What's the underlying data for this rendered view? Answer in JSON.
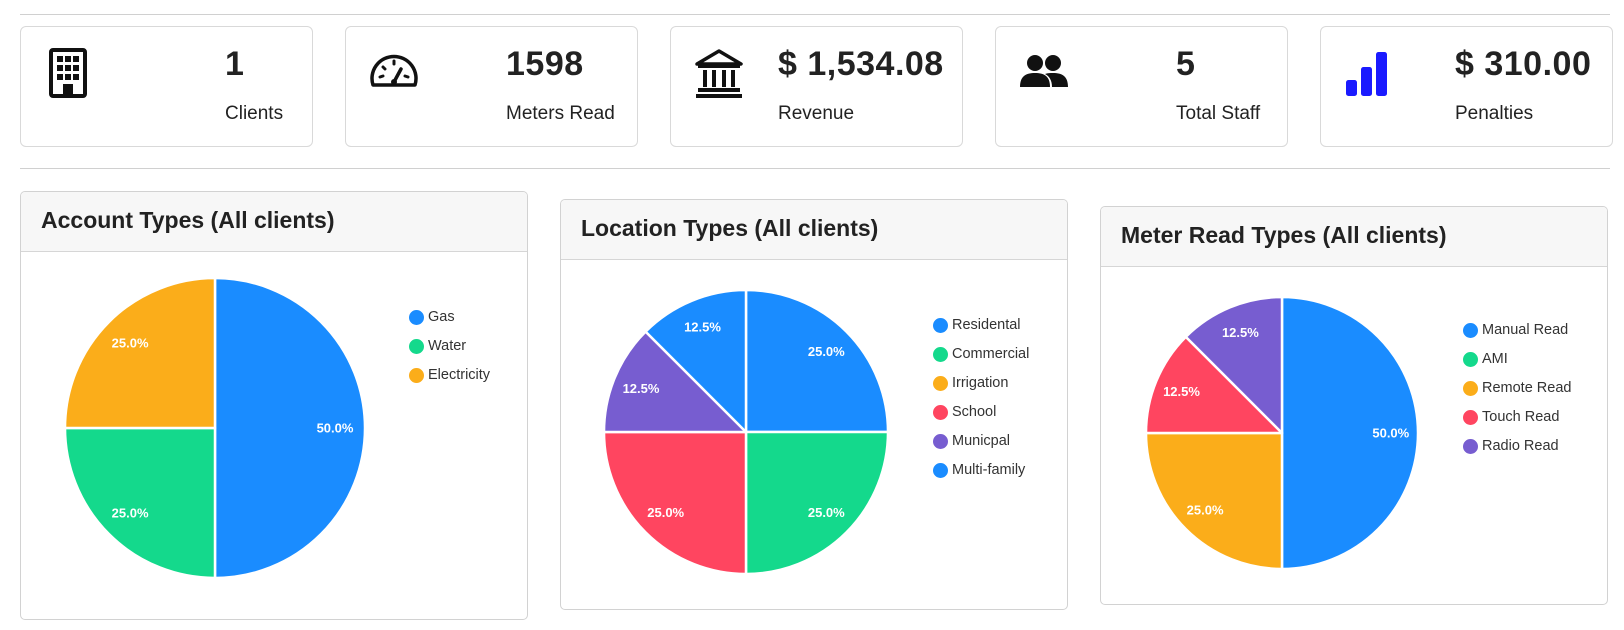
{
  "stats": [
    {
      "value": "1",
      "label": "Clients",
      "icon": "building-icon"
    },
    {
      "value": "1598",
      "label": "Meters Read",
      "icon": "speedometer-icon"
    },
    {
      "value": "$ 1,534.08",
      "label": "Revenue",
      "icon": "bank-icon"
    },
    {
      "value": "5",
      "label": "Total Staff",
      "icon": "people-icon"
    },
    {
      "value": "$ 310.00",
      "label": "Penalties",
      "icon": "bar-chart-icon"
    }
  ],
  "colors": {
    "blue": "#1a8cff",
    "green": "#14d98c",
    "orange": "#fbad1a",
    "red": "#ff4560",
    "purple": "#775dd0",
    "penalty_icon": "#1a1aff"
  },
  "chart_data": [
    {
      "type": "pie",
      "title": "Account Types (All clients)",
      "categories": [
        "Gas",
        "Water",
        "Electricity"
      ],
      "values": [
        50.0,
        25.0,
        25.0
      ],
      "colors": [
        "#1a8cff",
        "#14d98c",
        "#fbad1a"
      ],
      "labels": [
        "50.0%",
        "25.0%",
        "25.0%"
      ],
      "legend": "right"
    },
    {
      "type": "pie",
      "title": "Location Types (All clients)",
      "categories": [
        "Residental",
        "Commercial",
        "Irrigation",
        "School",
        "Municpal",
        "Multi-family"
      ],
      "values": [
        25.0,
        25.0,
        0,
        25.0,
        12.5,
        12.5
      ],
      "colors": [
        "#1a8cff",
        "#14d98c",
        "#fbad1a",
        "#ff4560",
        "#775dd0",
        "#1a8cff"
      ],
      "labels": [
        "25.0%",
        "25.0%",
        "",
        "25.0%",
        "12.5%",
        "12.5%"
      ],
      "legend": "right"
    },
    {
      "type": "pie",
      "title": "Meter Read Types (All clients)",
      "categories": [
        "Manual Read",
        "AMI",
        "Remote Read",
        "Touch Read",
        "Radio Read"
      ],
      "values": [
        50.0,
        0,
        25.0,
        12.5,
        12.5
      ],
      "colors": [
        "#1a8cff",
        "#14d98c",
        "#fbad1a",
        "#ff4560",
        "#775dd0"
      ],
      "labels": [
        "50.0%",
        "",
        "25.0%",
        "12.5%",
        "12.5%"
      ],
      "legend": "right"
    }
  ]
}
